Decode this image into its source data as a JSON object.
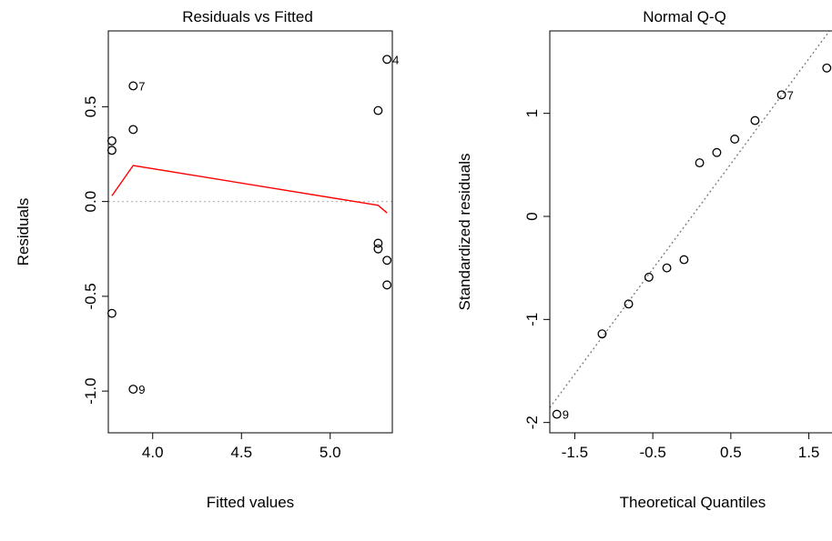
{
  "chart_data": [
    {
      "type": "scatter",
      "title": "Residuals vs Fitted",
      "xlabel": "Fitted values",
      "ylabel": "Residuals",
      "xlim": [
        3.75,
        5.35
      ],
      "ylim": [
        -1.22,
        0.9
      ],
      "xticks": [
        4.0,
        4.5,
        5.0
      ],
      "xtick_labels": [
        "4.0",
        "4.5",
        "5.0"
      ],
      "yticks": [
        -1.0,
        -0.5,
        0.0,
        0.5
      ],
      "ytick_labels": [
        "-1.0",
        "-0.5",
        "0.0",
        "0.5"
      ],
      "points": [
        {
          "x": 3.77,
          "y": 0.32,
          "label": ""
        },
        {
          "x": 3.77,
          "y": 0.27,
          "label": ""
        },
        {
          "x": 3.77,
          "y": -0.59,
          "label": ""
        },
        {
          "x": 3.89,
          "y": 0.61,
          "label": "7"
        },
        {
          "x": 3.89,
          "y": 0.38,
          "label": ""
        },
        {
          "x": 3.89,
          "y": -0.99,
          "label": "9"
        },
        {
          "x": 5.27,
          "y": 0.48,
          "label": ""
        },
        {
          "x": 5.27,
          "y": -0.22,
          "label": ""
        },
        {
          "x": 5.27,
          "y": -0.25,
          "label": ""
        },
        {
          "x": 5.32,
          "y": 0.75,
          "label": "4"
        },
        {
          "x": 5.32,
          "y": -0.31,
          "label": ""
        },
        {
          "x": 5.32,
          "y": -0.44,
          "label": ""
        }
      ],
      "smooth_line": [
        {
          "x": 3.77,
          "y": 0.03
        },
        {
          "x": 3.89,
          "y": 0.19
        },
        {
          "x": 5.27,
          "y": -0.02
        },
        {
          "x": 5.32,
          "y": -0.06
        }
      ],
      "reference_y": 0,
      "grid": false,
      "colors": {
        "points": "#000000",
        "smooth": "#ff0000",
        "reference": "#bbbbbb"
      }
    },
    {
      "type": "scatter",
      "title": "Normal Q-Q",
      "xlabel": "Theoretical Quantiles",
      "ylabel": "Standardized residuals",
      "xlim": [
        -1.82,
        1.82
      ],
      "ylim": [
        -2.1,
        1.8
      ],
      "xticks": [
        -1.5,
        -0.5,
        0.5,
        1.5
      ],
      "xtick_labels": [
        "-1.5",
        "-0.5",
        "0.5",
        "1.5"
      ],
      "yticks": [
        -2,
        -1,
        0,
        1
      ],
      "ytick_labels": [
        "-2",
        "-1",
        "0",
        "1"
      ],
      "points": [
        {
          "x": -1.73,
          "y": -1.92,
          "label": "9"
        },
        {
          "x": -1.15,
          "y": -1.14,
          "label": ""
        },
        {
          "x": -0.81,
          "y": -0.85,
          "label": ""
        },
        {
          "x": -0.55,
          "y": -0.59,
          "label": ""
        },
        {
          "x": -0.32,
          "y": -0.5,
          "label": ""
        },
        {
          "x": -0.1,
          "y": -0.42,
          "label": ""
        },
        {
          "x": 0.1,
          "y": 0.52,
          "label": ""
        },
        {
          "x": 0.32,
          "y": 0.62,
          "label": ""
        },
        {
          "x": 0.55,
          "y": 0.75,
          "label": ""
        },
        {
          "x": 0.81,
          "y": 0.93,
          "label": ""
        },
        {
          "x": 1.15,
          "y": 1.18,
          "label": "7"
        },
        {
          "x": 1.73,
          "y": 1.44,
          "label": "4"
        }
      ],
      "reference_line": {
        "slope": 1.02,
        "intercept": 0.0
      },
      "grid": false,
      "colors": {
        "points": "#000000",
        "reference": "#777777"
      }
    }
  ]
}
